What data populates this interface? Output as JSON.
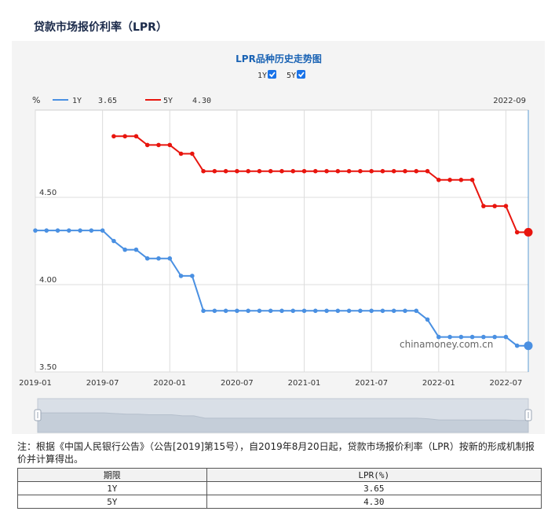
{
  "page": {
    "title": "贷款市场报价利率（LPR）",
    "footnote": "注：根据《中国人民银行公告》（公告[2019]第15号），自2019年8月20日起，贷款市场报价利率（LPR）按新的形成机制报价并计算得出。",
    "watermark": "chinamoney.com.cn"
  },
  "chart_data": {
    "type": "line",
    "title": "LPR品种历史走势图",
    "unit_label": "%",
    "latest_label": "2022-09",
    "toggles": [
      {
        "label": "1Y",
        "checked": true
      },
      {
        "label": "5Y",
        "checked": true
      }
    ],
    "ylim": [
      3.5,
      5.0
    ],
    "y_ticks": [
      {
        "value": 4.5,
        "label": "4.50"
      },
      {
        "value": 4.0,
        "label": "4.00"
      },
      {
        "value": 3.5,
        "label": "3.50"
      }
    ],
    "x_ticks": [
      "2019-01",
      "2019-07",
      "2020-01",
      "2020-07",
      "2021-01",
      "2021-07",
      "2022-01",
      "2022-07"
    ],
    "x_range": [
      "2019-01",
      "2022-09"
    ],
    "grid": true,
    "legend_position": "top-left",
    "series": [
      {
        "name": "1Y",
        "latest_value": "3.65",
        "color": "#4a90e2",
        "points": [
          [
            "2019-01",
            4.31
          ],
          [
            "2019-02",
            4.31
          ],
          [
            "2019-03",
            4.31
          ],
          [
            "2019-04",
            4.31
          ],
          [
            "2019-05",
            4.31
          ],
          [
            "2019-06",
            4.31
          ],
          [
            "2019-07",
            4.31
          ],
          [
            "2019-08",
            4.25
          ],
          [
            "2019-09",
            4.2
          ],
          [
            "2019-10",
            4.2
          ],
          [
            "2019-11",
            4.15
          ],
          [
            "2019-12",
            4.15
          ],
          [
            "2020-01",
            4.15
          ],
          [
            "2020-02",
            4.05
          ],
          [
            "2020-03",
            4.05
          ],
          [
            "2020-04",
            3.85
          ],
          [
            "2020-05",
            3.85
          ],
          [
            "2020-06",
            3.85
          ],
          [
            "2020-07",
            3.85
          ],
          [
            "2020-08",
            3.85
          ],
          [
            "2020-09",
            3.85
          ],
          [
            "2020-10",
            3.85
          ],
          [
            "2020-11",
            3.85
          ],
          [
            "2020-12",
            3.85
          ],
          [
            "2021-01",
            3.85
          ],
          [
            "2021-02",
            3.85
          ],
          [
            "2021-03",
            3.85
          ],
          [
            "2021-04",
            3.85
          ],
          [
            "2021-05",
            3.85
          ],
          [
            "2021-06",
            3.85
          ],
          [
            "2021-07",
            3.85
          ],
          [
            "2021-08",
            3.85
          ],
          [
            "2021-09",
            3.85
          ],
          [
            "2021-10",
            3.85
          ],
          [
            "2021-11",
            3.85
          ],
          [
            "2021-12",
            3.8
          ],
          [
            "2022-01",
            3.7
          ],
          [
            "2022-02",
            3.7
          ],
          [
            "2022-03",
            3.7
          ],
          [
            "2022-04",
            3.7
          ],
          [
            "2022-05",
            3.7
          ],
          [
            "2022-06",
            3.7
          ],
          [
            "2022-07",
            3.7
          ],
          [
            "2022-08",
            3.65
          ],
          [
            "2022-09",
            3.65
          ]
        ]
      },
      {
        "name": "5Y",
        "latest_value": "4.30",
        "color": "#e8150e",
        "points": [
          [
            "2019-08",
            4.85
          ],
          [
            "2019-09",
            4.85
          ],
          [
            "2019-10",
            4.85
          ],
          [
            "2019-11",
            4.8
          ],
          [
            "2019-12",
            4.8
          ],
          [
            "2020-01",
            4.8
          ],
          [
            "2020-02",
            4.75
          ],
          [
            "2020-03",
            4.75
          ],
          [
            "2020-04",
            4.65
          ],
          [
            "2020-05",
            4.65
          ],
          [
            "2020-06",
            4.65
          ],
          [
            "2020-07",
            4.65
          ],
          [
            "2020-08",
            4.65
          ],
          [
            "2020-09",
            4.65
          ],
          [
            "2020-10",
            4.65
          ],
          [
            "2020-11",
            4.65
          ],
          [
            "2020-12",
            4.65
          ],
          [
            "2021-01",
            4.65
          ],
          [
            "2021-02",
            4.65
          ],
          [
            "2021-03",
            4.65
          ],
          [
            "2021-04",
            4.65
          ],
          [
            "2021-05",
            4.65
          ],
          [
            "2021-06",
            4.65
          ],
          [
            "2021-07",
            4.65
          ],
          [
            "2021-08",
            4.65
          ],
          [
            "2021-09",
            4.65
          ],
          [
            "2021-10",
            4.65
          ],
          [
            "2021-11",
            4.65
          ],
          [
            "2021-12",
            4.65
          ],
          [
            "2022-01",
            4.6
          ],
          [
            "2022-02",
            4.6
          ],
          [
            "2022-03",
            4.6
          ],
          [
            "2022-04",
            4.6
          ],
          [
            "2022-05",
            4.45
          ],
          [
            "2022-06",
            4.45
          ],
          [
            "2022-07",
            4.45
          ],
          [
            "2022-08",
            4.3
          ],
          [
            "2022-09",
            4.3
          ]
        ]
      }
    ]
  },
  "table": {
    "headers": [
      "期限",
      "LPR(%)"
    ],
    "rows": [
      {
        "term": "1Y",
        "rate": "3.65"
      },
      {
        "term": "5Y",
        "rate": "4.30"
      }
    ]
  }
}
